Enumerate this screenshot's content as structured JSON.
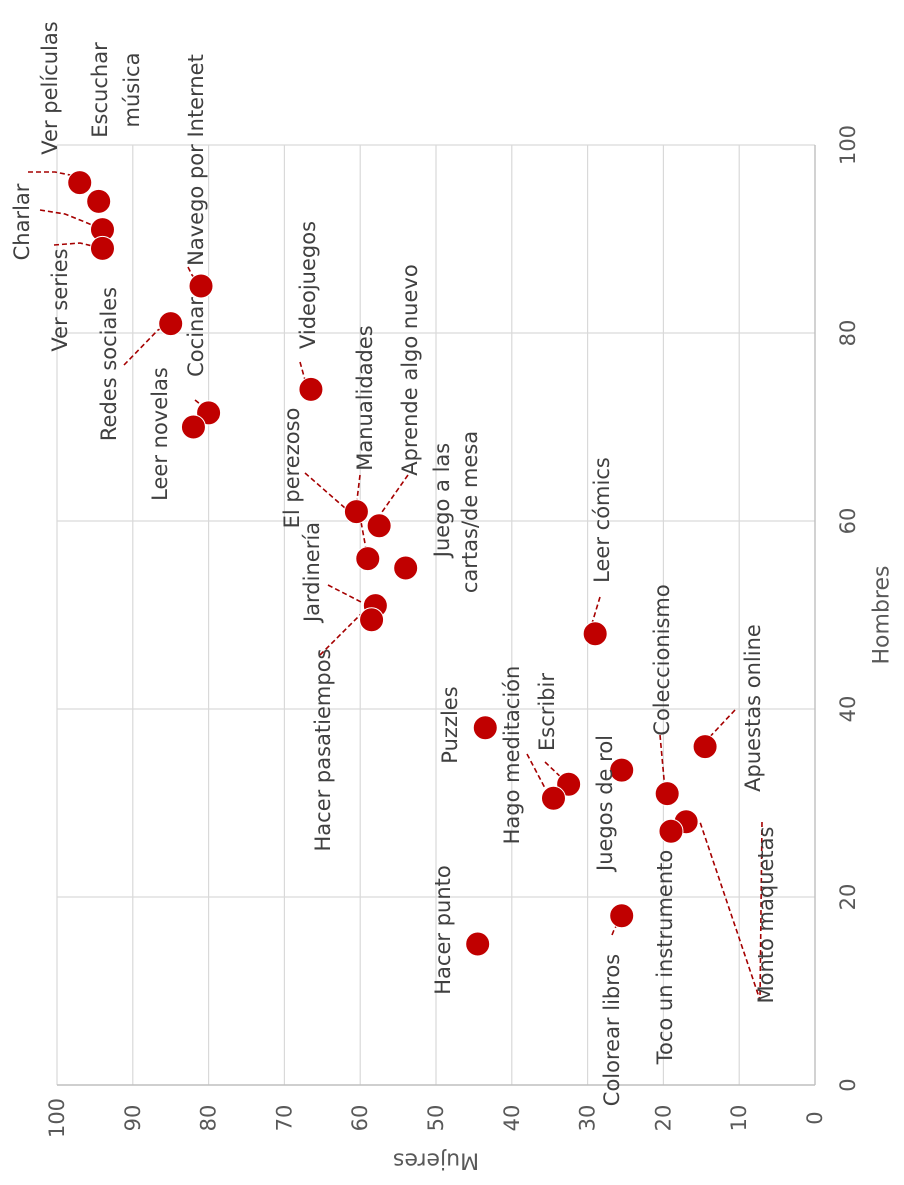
{
  "chart_data": {
    "type": "scatter",
    "xlabel": "Hombres",
    "ylabel": "Mujeres",
    "xlim": [
      0,
      100
    ],
    "ylim": [
      0,
      100
    ],
    "x_ticks": [
      "0",
      "20",
      "40",
      "60",
      "80",
      "100"
    ],
    "y_ticks": [
      "0",
      "10",
      "20",
      "30",
      "40",
      "50",
      "60",
      "70",
      "80",
      "90",
      "100"
    ],
    "grid": true,
    "point_color": "#c00000",
    "points": [
      {
        "label": "Ver películas",
        "x": 96,
        "y": 97
      },
      {
        "label": "Escuchar música",
        "x": 94,
        "y": 94.5
      },
      {
        "label": "Charlar",
        "x": 91,
        "y": 94
      },
      {
        "label": "Ver series",
        "x": 89,
        "y": 94
      },
      {
        "label": "Navego por Internet",
        "x": 85,
        "y": 81
      },
      {
        "label": "Redes sociales",
        "x": 81,
        "y": 85
      },
      {
        "label": "Videojuegos",
        "x": 74,
        "y": 66.5
      },
      {
        "label": "Cocinar",
        "x": 71.5,
        "y": 80
      },
      {
        "label": "Leer novelas",
        "x": 70,
        "y": 82
      },
      {
        "label": "El perezoso",
        "x": 61,
        "y": 60.5
      },
      {
        "label": "Aprende algo nuevo",
        "x": 59.5,
        "y": 57.5
      },
      {
        "label": "Manualidades",
        "x": 56,
        "y": 59
      },
      {
        "label": "Juego a las cartas/de mesa",
        "x": 55,
        "y": 54
      },
      {
        "label": "Jardinería",
        "x": 51,
        "y": 58
      },
      {
        "label": "Hacer pasatiempos",
        "x": 49.5,
        "y": 58.5
      },
      {
        "label": "Leer cómics",
        "x": 48,
        "y": 29
      },
      {
        "label": "Puzzles",
        "x": 38,
        "y": 43.5
      },
      {
        "label": "Apuestas online",
        "x": 36,
        "y": 14.5
      },
      {
        "label": "Juegos de rol",
        "x": 33.5,
        "y": 25.5
      },
      {
        "label": "Escribir",
        "x": 32,
        "y": 32.5
      },
      {
        "label": "Coleccionismo",
        "x": 31,
        "y": 19.5
      },
      {
        "label": "Hago meditación",
        "x": 30.5,
        "y": 34.5
      },
      {
        "label": "Monto maquetas",
        "x": 28,
        "y": 17
      },
      {
        "label": "Toco un instrumento",
        "x": 27,
        "y": 19
      },
      {
        "label": "Colorear libros",
        "x": 18,
        "y": 25.5
      },
      {
        "label": "Hacer punto",
        "x": 15,
        "y": 44.5
      }
    ]
  }
}
